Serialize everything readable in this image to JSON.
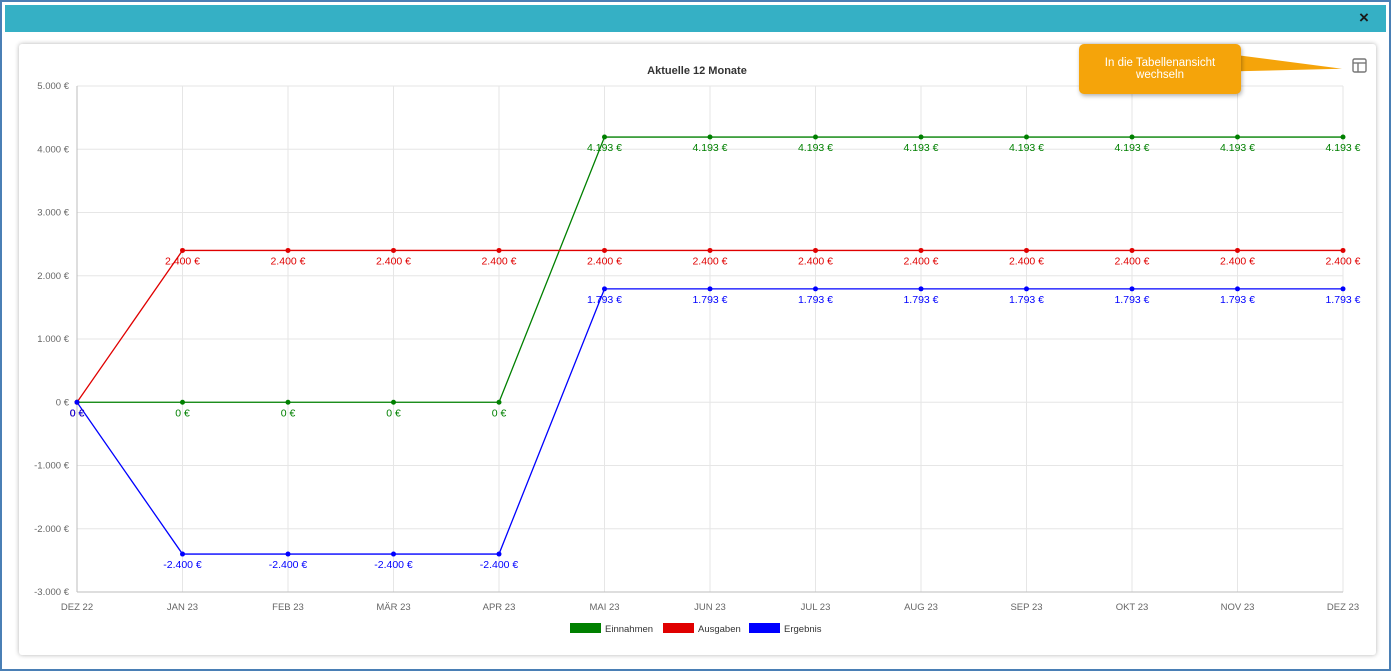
{
  "window": {
    "close_label": "×"
  },
  "tooltip": {
    "line1": "In die Tabellenansicht",
    "line2": "wechseln"
  },
  "icons": {
    "close": "close-icon",
    "table_view": "table-view-icon"
  },
  "chart_data": {
    "type": "line",
    "title": "Aktuelle 12 Monate",
    "xlabel": "",
    "ylabel": "",
    "categories": [
      "DEZ 22",
      "JAN 23",
      "FEB 23",
      "MÄR 23",
      "APR 23",
      "MAI 23",
      "JUN 23",
      "JUL 23",
      "AUG 23",
      "SEP 23",
      "OKT 23",
      "NOV 23",
      "DEZ 23"
    ],
    "ylim": [
      -3000,
      5000
    ],
    "yticks": [
      5000,
      4000,
      3000,
      2000,
      1000,
      0,
      -1000,
      -2000,
      -3000
    ],
    "ytick_labels": [
      "5.000 €",
      "4.000 €",
      "3.000 €",
      "2.000 €",
      "1.000 €",
      "0 €",
      "-1.000 €",
      "-2.000 €",
      "-3.000 €"
    ],
    "grid": true,
    "legend_position": "bottom-center",
    "series": [
      {
        "name": "Einnahmen",
        "color": "#008000",
        "values": [
          0,
          0,
          0,
          0,
          0,
          4193,
          4193,
          4193,
          4193,
          4193,
          4193,
          4193,
          4193
        ],
        "labels": [
          "0 €",
          "0 €",
          "0 €",
          "0 €",
          "0 €",
          "4.193 €",
          "4.193 €",
          "4.193 €",
          "4.193 €",
          "4.193 €",
          "4.193 €",
          "4.193 €",
          "4.193 €"
        ]
      },
      {
        "name": "Ausgaben",
        "color": "#e00000",
        "values": [
          0,
          2400,
          2400,
          2400,
          2400,
          2400,
          2400,
          2400,
          2400,
          2400,
          2400,
          2400,
          2400
        ],
        "labels": [
          "0 €",
          "2.400 €",
          "2.400 €",
          "2.400 €",
          "2.400 €",
          "2.400 €",
          "2.400 €",
          "2.400 €",
          "2.400 €",
          "2.400 €",
          "2.400 €",
          "2.400 €",
          "2.400 €"
        ]
      },
      {
        "name": "Ergebnis",
        "color": "#0000ff",
        "values": [
          0,
          -2400,
          -2400,
          -2400,
          -2400,
          1793,
          1793,
          1793,
          1793,
          1793,
          1793,
          1793,
          1793
        ],
        "labels": [
          "0 €",
          "-2.400 €",
          "-2.400 €",
          "-2.400 €",
          "-2.400 €",
          "1.793 €",
          "1.793 €",
          "1.793 €",
          "1.793 €",
          "1.793 €",
          "1.793 €",
          "1.793 €",
          "1.793 €"
        ]
      }
    ]
  }
}
